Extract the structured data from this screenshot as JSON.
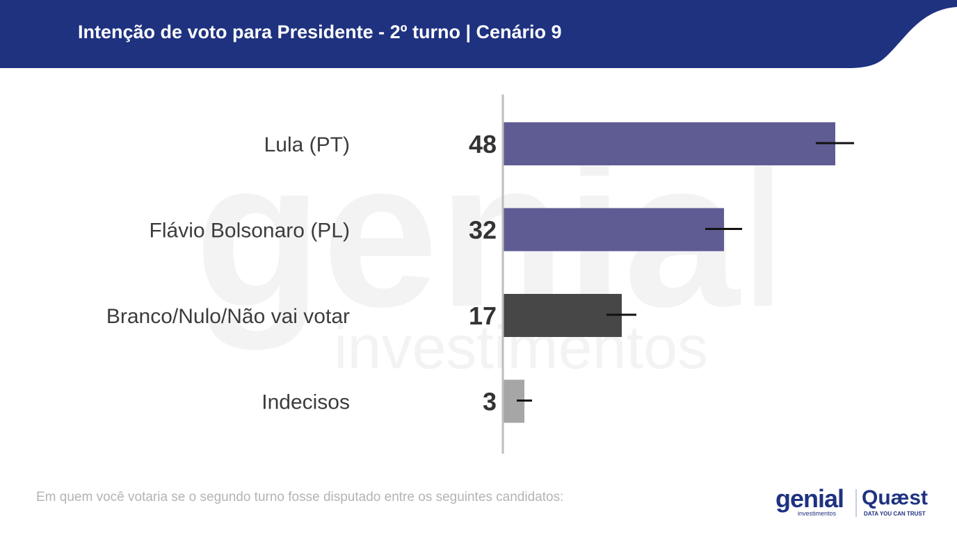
{
  "header": {
    "title": "Intenção de voto para Presidente - 2º turno | Cenário 9",
    "background_color": "#1f3280"
  },
  "watermark": {
    "line1": "genial",
    "line2": "investimentos"
  },
  "footnote": "Em quem você votaria se o segundo turno fosse disputado entre os seguintes candidatos:",
  "logos": {
    "genial": "genial",
    "genial_sub": "investimentos",
    "quaest": "Quæst",
    "quaest_sub": "DATA YOU CAN TRUST"
  },
  "chart_data": {
    "type": "bar",
    "orientation": "horizontal",
    "categories": [
      "Lula (PT)",
      "Flávio Bolsonaro (PL)",
      "Branco/Nulo/Não vai votar",
      "Indecisos"
    ],
    "values": [
      48,
      32,
      17,
      3
    ],
    "error_bars": true,
    "colors": [
      "#5f5c94",
      "#5f5c94",
      "#474747",
      "#a6a6a6"
    ],
    "xlim": [
      0,
      50
    ],
    "grid": false,
    "legend": "none"
  }
}
